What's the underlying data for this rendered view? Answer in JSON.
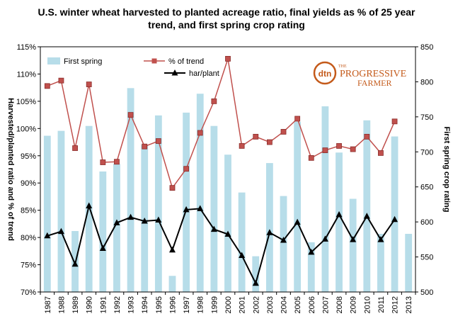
{
  "chart_data": {
    "type": "bar+line",
    "title_line1": "U.S. winter wheat harvested to planted acreage ratio, final yields as % of 25 year",
    "title_line2": "trend, and first spring crop rating",
    "ylabel_left": "Harvested/planted ratio and % of trend",
    "ylabel_right": "First spring crop rating",
    "ylim_left": [
      0.7,
      1.15
    ],
    "ylim_right": [
      500,
      850
    ],
    "yticks_left": [
      "70%",
      "75%",
      "80%",
      "85%",
      "90%",
      "95%",
      "100%",
      "105%",
      "110%",
      "115%"
    ],
    "yticks_right": [
      "500",
      "550",
      "600",
      "650",
      "700",
      "750",
      "800",
      "850"
    ],
    "categories": [
      "1987",
      "1988",
      "1989",
      "1990",
      "1991",
      "1992",
      "1993",
      "1994",
      "1995",
      "1996",
      "1997",
      "1998",
      "1999",
      "2000",
      "2001",
      "2002",
      "2003",
      "2004",
      "2005",
      "2006",
      "2007",
      "2008",
      "2009",
      "2010",
      "2011",
      "2012",
      "2013"
    ],
    "series": [
      {
        "name": "First spring",
        "axis": "right",
        "kind": "bar",
        "color": "#b7dde9",
        "values": [
          723,
          730,
          587,
          737,
          672,
          683,
          791,
          710,
          752,
          523,
          756,
          783,
          737,
          696,
          642,
          551,
          684,
          637,
          743,
          571,
          765,
          699,
          633,
          745,
          583,
          722,
          583
        ]
      },
      {
        "name": "% of trend",
        "axis": "left",
        "kind": "line",
        "color": "#c0504d",
        "marker": "square",
        "values": [
          1.078,
          1.088,
          0.964,
          1.081,
          0.938,
          0.939,
          1.025,
          0.967,
          0.977,
          0.891,
          0.926,
          0.992,
          1.05,
          1.128,
          0.968,
          0.985,
          0.975,
          0.994,
          1.018,
          0.946,
          0.96,
          0.968,
          0.962,
          0.985,
          0.955,
          1.013,
          null
        ]
      },
      {
        "name": "har/plant",
        "axis": "left",
        "kind": "line",
        "color": "#000000",
        "marker": "triangle",
        "values": [
          0.803,
          0.811,
          0.751,
          0.858,
          0.78,
          0.827,
          0.837,
          0.83,
          0.832,
          0.777,
          0.851,
          0.853,
          0.815,
          0.806,
          0.767,
          0.716,
          0.809,
          0.795,
          0.828,
          0.773,
          0.797,
          0.842,
          0.796,
          0.839,
          0.796,
          0.833,
          null
        ]
      }
    ],
    "legend_placement": "top-left",
    "grid": false
  },
  "logo": {
    "circle_text": "dtn",
    "word1": "THE",
    "word2": "PROGRESSIVE",
    "word3": "FARMER",
    "color": "#c45a1a"
  }
}
